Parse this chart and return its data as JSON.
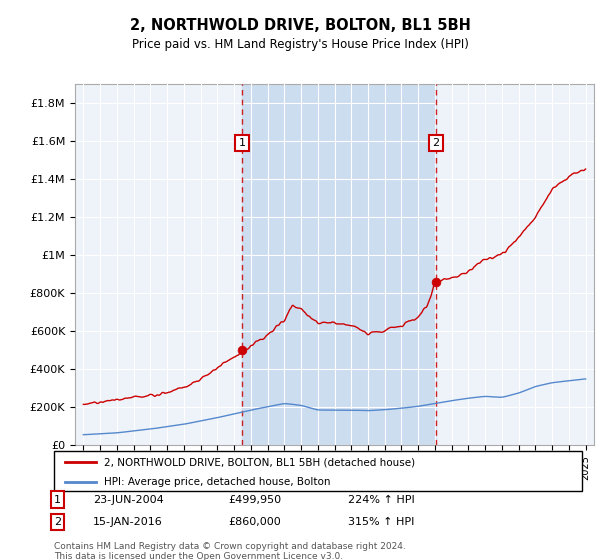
{
  "title": "2, NORTHWOLD DRIVE, BOLTON, BL1 5BH",
  "subtitle": "Price paid vs. HM Land Registry's House Price Index (HPI)",
  "background_color": "#ffffff",
  "plot_bg_color": "#eef3fa",
  "shaded_region_color": "#ccddf0",
  "hpi_color": "#5588cc",
  "price_color": "#cc0000",
  "marker1_date_x": 2004.48,
  "marker1_label": "1",
  "marker1_price": 499950,
  "marker1_date_str": "23-JUN-2004",
  "marker1_pct": "224%",
  "marker2_date_x": 2016.04,
  "marker2_label": "2",
  "marker2_price": 860000,
  "marker2_date_str": "15-JAN-2016",
  "marker2_pct": "315%",
  "ylim_min": 0,
  "ylim_max": 1900000,
  "yticks": [
    0,
    200000,
    400000,
    600000,
    800000,
    1000000,
    1200000,
    1400000,
    1600000,
    1800000
  ],
  "ytick_labels": [
    "£0",
    "£200K",
    "£400K",
    "£600K",
    "£800K",
    "£1M",
    "£1.2M",
    "£1.4M",
    "£1.6M",
    "£1.8M"
  ],
  "xlim_min": 1994.5,
  "xlim_max": 2025.5,
  "footer": "Contains HM Land Registry data © Crown copyright and database right 2024.\nThis data is licensed under the Open Government Licence v3.0.",
  "legend_entry1": "2, NORTHWOLD DRIVE, BOLTON, BL1 5BH (detached house)",
  "legend_entry2": "HPI: Average price, detached house, Bolton"
}
